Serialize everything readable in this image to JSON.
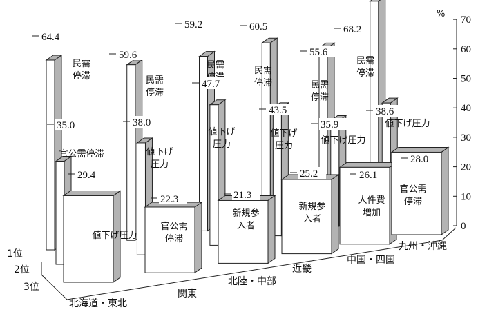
{
  "chart_data": {
    "type": "bar",
    "unit": "%",
    "ylim": [
      0,
      70
    ],
    "yticks": [
      0,
      10,
      20,
      30,
      40,
      50,
      60,
      70
    ],
    "categories": [
      "北海道・東北",
      "関東",
      "北陸・中部",
      "近畿",
      "中国・四国",
      "九州・沖縄"
    ],
    "series": [
      {
        "name": "1位",
        "values": [
          64.4,
          59.6,
          59.2,
          60.5,
          55.6,
          68.2
        ],
        "labels": [
          "民需\n停滞",
          "民需\n停滞",
          "民需\n停滞",
          "民需\n停滞",
          "民需\n停滞",
          "民需\n停滞"
        ]
      },
      {
        "name": "2位",
        "values": [
          35.0,
          38.0,
          47.7,
          43.5,
          35.9,
          38.6
        ],
        "labels": [
          "官公需停滞",
          "値下げ\n圧力",
          "値下げ\n圧力",
          "値下げ\n圧力",
          "値下げ圧力",
          "値下げ圧力"
        ]
      },
      {
        "name": "3位",
        "values": [
          29.4,
          22.3,
          21.3,
          25.2,
          26.1,
          28.0
        ],
        "labels": [
          "値下げ圧力",
          "官公需\n停滞",
          "新規参\n入者",
          "新規参\n入者",
          "人件費\n増加",
          "官公需\n停滞"
        ]
      }
    ],
    "colors": {
      "face": "#ffffff",
      "side": "#b3b3b3",
      "edge": "#222222"
    }
  }
}
